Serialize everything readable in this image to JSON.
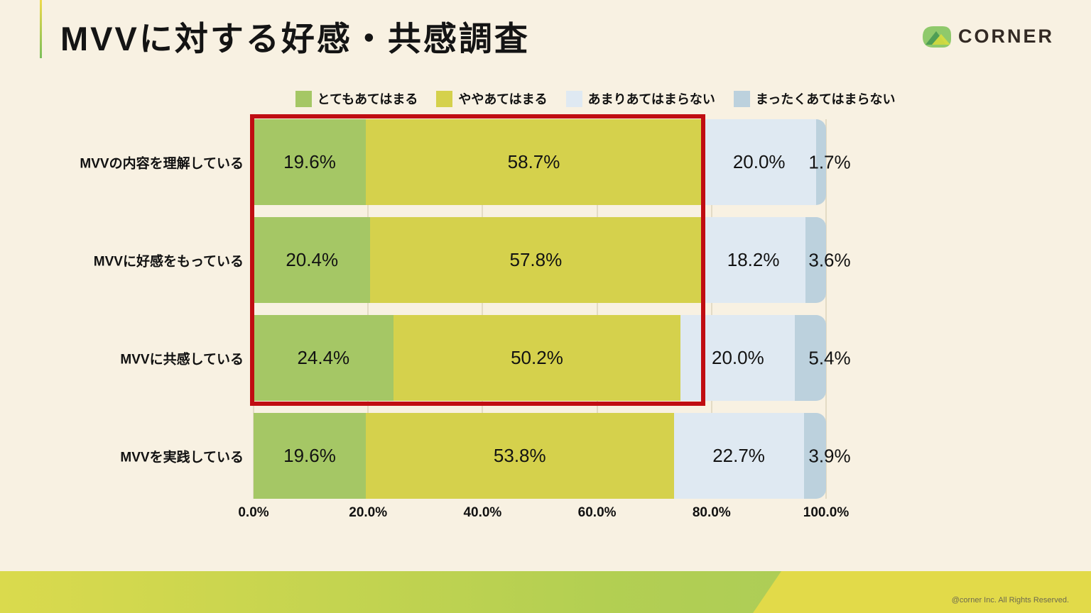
{
  "slide": {
    "title": "MVVに対する好感・共感調査",
    "logo_text": "CORNER",
    "footer_copyright": "@corner Inc. All Rights Reserved."
  },
  "colors": {
    "background": "#f8f1e2",
    "accent_gradient": [
      "#eed94b",
      "#7bbf5a"
    ],
    "highlight_box": "#c00d12",
    "gridline": "#e3dbc5",
    "footer_gradient": [
      "#dada4d",
      "#a5ca5e"
    ],
    "footer_yellow_block": "#e2da49",
    "logo_greens": [
      "#8fc96b",
      "#4f9e55",
      "#d8dd3f"
    ]
  },
  "chart_data": {
    "type": "bar",
    "orientation": "horizontal",
    "stacked": true,
    "unit": "%",
    "xlim": [
      0,
      100
    ],
    "x_axis_ticks": [
      "0.0%",
      "20.0%",
      "40.0%",
      "60.0%",
      "80.0%",
      "100.0%"
    ],
    "legend_position": "top",
    "grid": true,
    "categories": [
      "MVVの内容を理解している",
      "MVVに好感をもっている",
      "MVVに共感している",
      "MVVを実践している"
    ],
    "series": [
      {
        "name": "とてもあてはまる",
        "color": "#a5c765",
        "values": [
          19.6,
          20.4,
          24.4,
          19.6
        ]
      },
      {
        "name": "ややあてはまる",
        "color": "#d5d14c",
        "values": [
          58.7,
          57.8,
          50.2,
          53.8
        ]
      },
      {
        "name": "あまりあてはまらない",
        "color": "#dfe9f2",
        "values": [
          20.0,
          18.2,
          20.0,
          22.7
        ]
      },
      {
        "name": "まったくあてはまらない",
        "color": "#bcd1dd",
        "values": [
          1.7,
          3.6,
          5.4,
          3.9
        ]
      }
    ],
    "annotation": {
      "type": "highlight-box",
      "color": "#c00d12",
      "rows_enclosed": [
        0,
        1,
        2
      ],
      "note": "red rectangle around the positive-answer segments of the first three rows"
    }
  }
}
